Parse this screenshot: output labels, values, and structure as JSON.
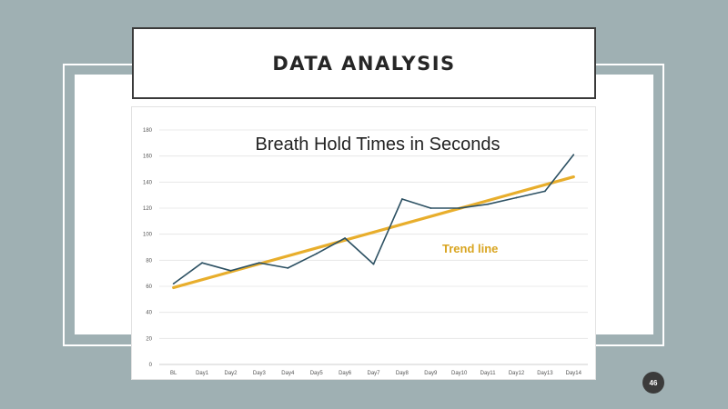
{
  "slide": {
    "title": "DATA ANALYSIS",
    "page_number": "46"
  },
  "chart_data": {
    "type": "line",
    "title": "Breath Hold Times in Seconds",
    "categories": [
      "BL",
      "Day1",
      "Day2",
      "Day3",
      "Day4",
      "Day5",
      "Day6",
      "Day7",
      "Day8",
      "Day9",
      "Day10",
      "Day11",
      "Day12",
      "Day13",
      "Day14"
    ],
    "series": [
      {
        "values": [
          62,
          78,
          72,
          78,
          74,
          85,
          97,
          77,
          127,
          120,
          120,
          123,
          128,
          133,
          161
        ],
        "color": "#2d5163"
      }
    ],
    "trendline": {
      "label": "Trend line",
      "start": 59,
      "end": 144,
      "color": "#e8ae2c"
    },
    "ylim": [
      0,
      180
    ],
    "yticks": [
      0,
      20,
      40,
      60,
      80,
      100,
      120,
      140,
      160,
      180
    ],
    "grid": true,
    "xlabel": "",
    "ylabel": ""
  }
}
